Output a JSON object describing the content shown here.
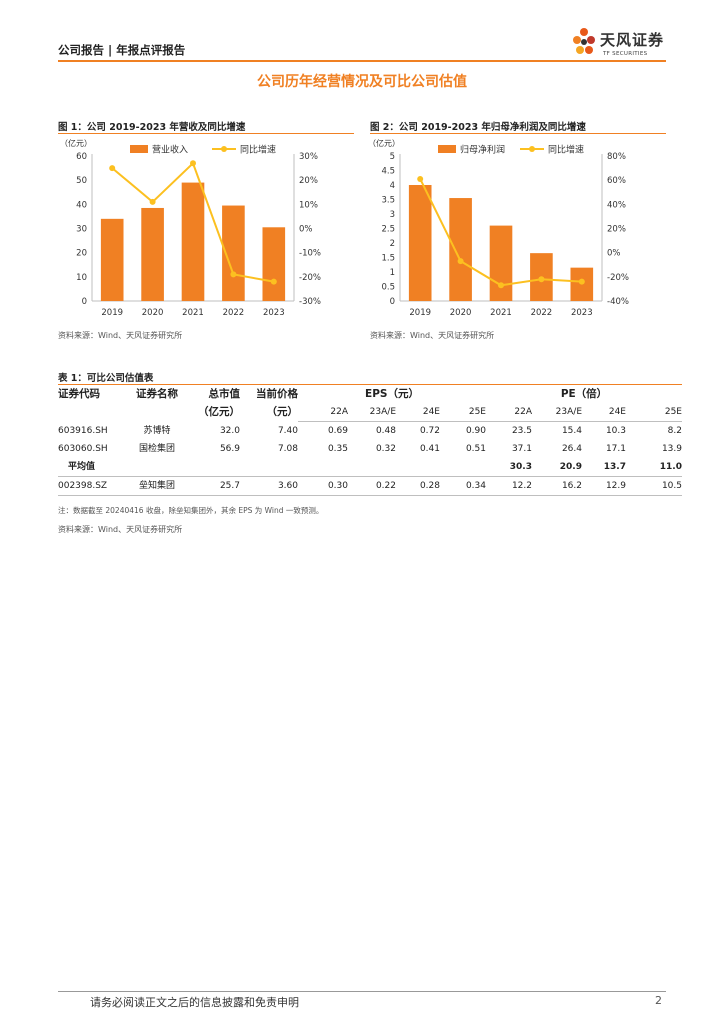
{
  "header": {
    "left": "公司报告 | 年报点评报告",
    "logo_name": "天风证券",
    "logo_sub": "TF SECURITIES"
  },
  "section_title": "公司历年经营情况及可比公司估值",
  "figures": [
    {
      "caption": "图 1：公司 2019-2023 年营收及同比增速",
      "source": "资料来源：Wind、天风证券研究所",
      "chart_data": {
        "type": "bar",
        "categories": [
          "2019",
          "2020",
          "2021",
          "2022",
          "2023"
        ],
        "unit_label": "（亿元）",
        "series": [
          {
            "name": "营业收入",
            "type": "bar",
            "axis": "left",
            "values": [
              34,
              38.5,
              49,
              39.5,
              30.5
            ],
            "color": "#f08023"
          },
          {
            "name": "同比增速",
            "type": "line",
            "axis": "right",
            "values": [
              0.25,
              0.11,
              0.27,
              -0.19,
              -0.22
            ],
            "color": "#fcc020"
          }
        ],
        "y_left": {
          "min": 0,
          "max": 60,
          "ticks": [
            "0",
            "10",
            "20",
            "30",
            "40",
            "50",
            "60"
          ]
        },
        "y_right": {
          "min": -0.3,
          "max": 0.3,
          "ticks": [
            "-30%",
            "-20%",
            "-10%",
            "0%",
            "10%",
            "20%",
            "30%"
          ]
        },
        "legend_position": "top"
      }
    },
    {
      "caption": "图 2：公司 2019-2023 年归母净利润及同比增速",
      "source": "资料来源：Wind、天风证券研究所",
      "chart_data": {
        "type": "bar",
        "categories": [
          "2019",
          "2020",
          "2021",
          "2022",
          "2023"
        ],
        "unit_label": "（亿元）",
        "series": [
          {
            "name": "归母净利润",
            "type": "bar",
            "axis": "left",
            "values": [
              4.0,
              3.55,
              2.6,
              1.65,
              1.15
            ],
            "color": "#f08023"
          },
          {
            "name": "同比增速",
            "type": "line",
            "axis": "right",
            "values": [
              0.61,
              -0.07,
              -0.27,
              -0.22,
              -0.24
            ],
            "color": "#fcc020"
          }
        ],
        "y_left": {
          "min": 0,
          "max": 5,
          "ticks": [
            "0",
            "0.5",
            "1",
            "1.5",
            "2",
            "2.5",
            "3",
            "3.5",
            "4",
            "4.5",
            "5"
          ]
        },
        "y_right": {
          "min": -0.4,
          "max": 0.8,
          "ticks": [
            "-40%",
            "-20%",
            "0%",
            "20%",
            "40%",
            "60%",
            "80%"
          ]
        },
        "legend_position": "top"
      }
    }
  ],
  "table": {
    "caption": "表 1：可比公司估值表",
    "headers": {
      "code": "证券代码",
      "name": "证券名称",
      "mcap": "总市值",
      "mcap_unit": "（亿元）",
      "price": "当前价格",
      "price_unit": "（元）",
      "eps": "EPS（元）",
      "pe": "PE（倍）"
    },
    "years": [
      "22A",
      "23A/E",
      "24E",
      "25E",
      "22A",
      "23A/E",
      "24E",
      "25E"
    ],
    "rows": [
      {
        "code": "603916.SH",
        "name": "苏博特",
        "mcap": "32.0",
        "price": "7.40",
        "vals": [
          "0.69",
          "0.48",
          "0.72",
          "0.90",
          "23.5",
          "15.4",
          "10.3",
          "8.2"
        ]
      },
      {
        "code": "603060.SH",
        "name": "国检集团",
        "mcap": "56.9",
        "price": "7.08",
        "vals": [
          "0.35",
          "0.32",
          "0.41",
          "0.51",
          "37.1",
          "26.4",
          "17.1",
          "13.9"
        ]
      }
    ],
    "average": {
      "label": "平均值",
      "vals": [
        "30.3",
        "20.9",
        "13.7",
        "11.0"
      ]
    },
    "target": {
      "code": "002398.SZ",
      "name": "垒知集团",
      "mcap": "25.7",
      "price": "3.60",
      "vals": [
        "0.30",
        "0.22",
        "0.28",
        "0.34",
        "12.2",
        "16.2",
        "12.9",
        "10.5"
      ]
    },
    "note": "注：数据截至 20240416 收盘，除垒知集团外，其余 EPS 为 Wind 一致预测。",
    "source": "资料来源：Wind、天风证券研究所"
  },
  "footer": {
    "text": "请务必阅读正文之后的信息披露和免责申明",
    "page": "2"
  },
  "colors": {
    "accent": "#f08023",
    "line": "#fcc020"
  }
}
